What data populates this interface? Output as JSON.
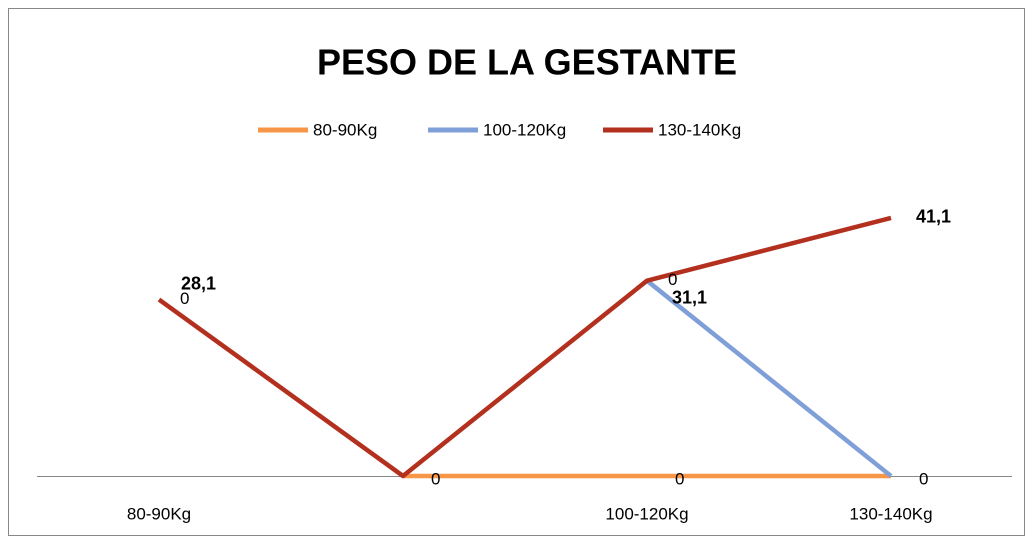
{
  "chart_data": {
    "type": "line",
    "title": "PESO DE LA GESTANTE",
    "categories": [
      "80-90Kg",
      null,
      "100-120Kg",
      "130-140Kg"
    ],
    "series": [
      {
        "name": "80-90Kg",
        "color": "#f79646",
        "values": [
          null,
          0,
          0,
          0
        ],
        "value_labels": [
          null,
          "0",
          "0",
          "0"
        ]
      },
      {
        "name": "100-120Kg",
        "color": "#7f9fd8",
        "values": [
          null,
          null,
          31.1,
          0
        ],
        "value_labels": [
          null,
          null,
          null,
          null
        ]
      },
      {
        "name": "130-140Kg",
        "color": "#b3301f",
        "values": [
          28.1,
          0,
          31.1,
          41.1
        ],
        "value_labels": [
          "28,1",
          null,
          "31,1",
          "41,1"
        ]
      }
    ],
    "annotations": [
      {
        "text": "0",
        "x": "80-90Kg",
        "y": 28.1
      },
      {
        "text": "0",
        "x": "100-120Kg",
        "y": 31.1
      }
    ],
    "ylim": [
      0,
      50
    ],
    "legend": "top",
    "grid": false
  }
}
